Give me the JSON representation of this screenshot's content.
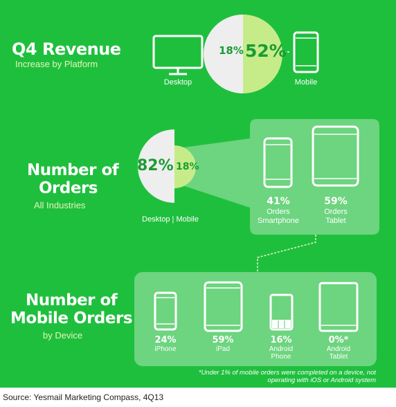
{
  "colors": {
    "background": "#1fbf3e",
    "panel": "#6dd47f",
    "desktop_circle": "#eeeeee",
    "mobile_circle": "#c6ec8a",
    "dark_text": "#1a9c32"
  },
  "revenue": {
    "title": "Q4 Revenue",
    "subtitle": "Increase by Platform",
    "desktop_label": "Desktop",
    "mobile_label": "Mobile",
    "desktop_value": "18%",
    "mobile_value": "52%"
  },
  "orders": {
    "title_line1": "Number of",
    "title_line2": "Orders",
    "subtitle": "All Industries",
    "desktop_value": "82%",
    "mobile_value": "18%",
    "split_label": "Desktop | Mobile",
    "smartphone": {
      "value": "41%",
      "line1": "Orders",
      "line2": "Smartphone"
    },
    "tablet": {
      "value": "59%",
      "line1": "Orders",
      "line2": "Tablet"
    }
  },
  "mobile_orders": {
    "title_line1": "Number of",
    "title_line2": "Mobile Orders",
    "subtitle": "by Device",
    "devices": [
      {
        "value": "24%",
        "line1": "iPhone",
        "line2": "",
        "icon": "iphone-icon"
      },
      {
        "value": "59%",
        "line1": "iPad",
        "line2": "",
        "icon": "ipad-icon"
      },
      {
        "value": "16%",
        "line1": "Android",
        "line2": "Phone",
        "icon": "android-phone-icon"
      },
      {
        "value": "0%*",
        "line1": "Android",
        "line2": "Tablet",
        "icon": "android-tablet-icon"
      }
    ],
    "footnote_line1": "*Under 1% of mobile orders were completed on a device, not",
    "footnote_line2": "operating with iOS or Android system"
  },
  "source": "Source: Yesmail Marketing Compass, 4Q13",
  "chart_data": [
    {
      "type": "pie",
      "title": "Q4 Revenue",
      "categories": [
        "Desktop",
        "Mobile"
      ],
      "values": [
        18,
        52
      ]
    },
    {
      "type": "pie",
      "title": "Number of Orders",
      "categories": [
        "Desktop",
        "Mobile"
      ],
      "values": [
        82,
        18
      ]
    },
    {
      "type": "bar",
      "categories": [
        "Smartphone",
        "Tablet"
      ],
      "values": [
        41,
        59
      ]
    },
    {
      "type": "bar",
      "title": "Number of Mobile Orders",
      "categories": [
        "iPhone",
        "iPad",
        "Android Phone",
        "Android Tablet"
      ],
      "values": [
        24,
        59,
        16,
        0
      ]
    }
  ]
}
